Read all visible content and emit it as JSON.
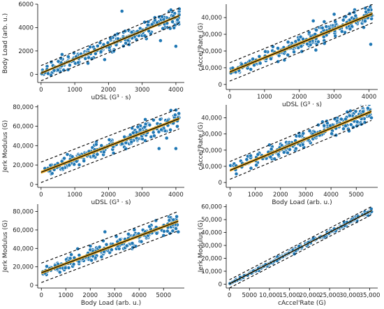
{
  "colors": {
    "points": "#1f77b4",
    "point_edge": "#ffffff",
    "fit": "#000000",
    "band": "#f0a30a",
    "prediction": "#000000"
  },
  "chart_data": [
    {
      "type": "scatter",
      "xlabel": "uDSL (G³ · s)",
      "ylabel": "Body Load (arb. u.)",
      "xlim": [
        -100,
        4250
      ],
      "ylim": [
        -700,
        6000
      ],
      "xticks": [
        0,
        1000,
        2000,
        3000,
        4000
      ],
      "xtick_labels": [
        "0",
        "1000",
        "2000",
        "3000",
        "4000"
      ],
      "yticks": [
        0,
        2000,
        4000,
        6000
      ],
      "ytick_labels": [
        "0",
        "2000",
        "4000",
        "6000"
      ],
      "fit": {
        "slope": 1.2,
        "intercept": 100,
        "band": 100,
        "pred": 650
      },
      "points": {
        "x_range": [
          0,
          4100
        ],
        "spread": 450,
        "count": 230,
        "outliers": [
          [
            2400,
            5400
          ],
          [
            4000,
            2400
          ],
          [
            4100,
            5600
          ],
          [
            3900,
            4500
          ]
        ]
      }
    },
    {
      "type": "scatter",
      "xlabel": "uDSL (G³ · s)",
      "ylabel": "cAccel'Rate (G)",
      "xlim": [
        -100,
        4250
      ],
      "ylim": [
        -3000,
        48000
      ],
      "xticks": [
        0,
        1000,
        2000,
        3000,
        4000
      ],
      "xtick_labels": [
        "0",
        "1000",
        "2000",
        "3000",
        "4000"
      ],
      "yticks": [
        0,
        10000,
        20000,
        30000,
        40000
      ],
      "ytick_labels": [
        "0",
        "10,000",
        "20,000",
        "30,000",
        "40,000"
      ],
      "fit": {
        "slope": 8.5,
        "intercept": 7500,
        "band": 900,
        "pred": 5500
      },
      "points": {
        "x_range": [
          0,
          4100
        ],
        "spread": 3300,
        "count": 230,
        "outliers": [
          [
            4050,
            24000
          ],
          [
            2400,
            38000
          ],
          [
            3000,
            42000
          ]
        ]
      }
    },
    {
      "type": "scatter",
      "xlabel": "uDSL (G³ · s)",
      "ylabel": "Jerk Modulus (G)",
      "xlim": [
        -100,
        4250
      ],
      "ylim": [
        -3000,
        82000
      ],
      "xticks": [
        0,
        1000,
        2000,
        3000,
        4000
      ],
      "xtick_labels": [
        "0",
        "1000",
        "2000",
        "3000",
        "4000"
      ],
      "yticks": [
        0,
        20000,
        40000,
        60000,
        80000
      ],
      "ytick_labels": [
        "0",
        "20,000",
        "40,000",
        "60,000",
        "80,000"
      ],
      "fit": {
        "slope": 13.5,
        "intercept": 12500,
        "band": 1500,
        "pred": 10500
      },
      "points": {
        "x_range": [
          0,
          4100
        ],
        "spread": 5500,
        "count": 230,
        "outliers": [
          [
            4000,
            37000
          ],
          [
            3500,
            37000
          ],
          [
            2700,
            58000
          ]
        ]
      }
    },
    {
      "type": "scatter",
      "xlabel": "Body Load (arb. u.)",
      "ylabel": "cAccel'Rate (G)",
      "xlim": [
        -150,
        5850
      ],
      "ylim": [
        -3000,
        48000
      ],
      "xticks": [
        0,
        1000,
        2000,
        3000,
        4000,
        5000
      ],
      "xtick_labels": [
        "0",
        "1000",
        "2000",
        "3000",
        "4000",
        "5000"
      ],
      "yticks": [
        0,
        10000,
        20000,
        30000,
        40000
      ],
      "ytick_labels": [
        "0",
        "10,000",
        "20,000",
        "30,000",
        "40,000"
      ],
      "fit": {
        "slope": 6.5,
        "intercept": 7500,
        "band": 900,
        "pred": 5500
      },
      "points": {
        "x_range": [
          0,
          5600
        ],
        "spread": 3300,
        "count": 230,
        "outliers": [
          [
            5600,
            40000
          ],
          [
            5200,
            36000
          ]
        ]
      }
    },
    {
      "type": "scatter",
      "xlabel": "Body Load (arb. u.)",
      "ylabel": "Jerk Modulus (G)",
      "xlim": [
        -150,
        5850
      ],
      "ylim": [
        -3000,
        88000
      ],
      "xticks": [
        0,
        1000,
        2000,
        3000,
        4000,
        5000
      ],
      "xtick_labels": [
        "0",
        "1000",
        "2000",
        "3000",
        "4000",
        "5000"
      ],
      "yticks": [
        0,
        20000,
        40000,
        60000,
        80000
      ],
      "ytick_labels": [
        "0",
        "20,000",
        "40,000",
        "60,000",
        "80,000"
      ],
      "fit": {
        "slope": 10,
        "intercept": 13500,
        "band": 1500,
        "pred": 10500
      },
      "points": {
        "x_range": [
          0,
          5600
        ],
        "spread": 5500,
        "count": 230,
        "outliers": [
          [
            5600,
            58000
          ],
          [
            5000,
            54000
          ],
          [
            2600,
            58000
          ]
        ]
      }
    },
    {
      "type": "scatter",
      "xlabel": "cAccel'Rate (G)",
      "ylabel": "Jerk Modulus (G)",
      "xlim": [
        -800,
        37000
      ],
      "ylim": [
        -3000,
        62000
      ],
      "xticks": [
        0,
        5000,
        10000,
        15000,
        20000,
        25000,
        30000,
        35000
      ],
      "xtick_labels": [
        "0",
        "5000",
        "10,000",
        "15,000",
        "20,000",
        "25,000",
        "30,000",
        "35,000"
      ],
      "yticks": [
        0,
        10000,
        20000,
        30000,
        40000,
        50000,
        60000
      ],
      "ytick_labels": [
        "0",
        "10,000",
        "20,000",
        "30,000",
        "40,000",
        "50,000",
        "60,000"
      ],
      "fit": {
        "slope": 1.6,
        "intercept": 200,
        "band": 500,
        "pred": 3200
      },
      "points": {
        "x_range": [
          0,
          35500
        ],
        "spread": 1000,
        "count": 230,
        "outliers": []
      }
    }
  ]
}
